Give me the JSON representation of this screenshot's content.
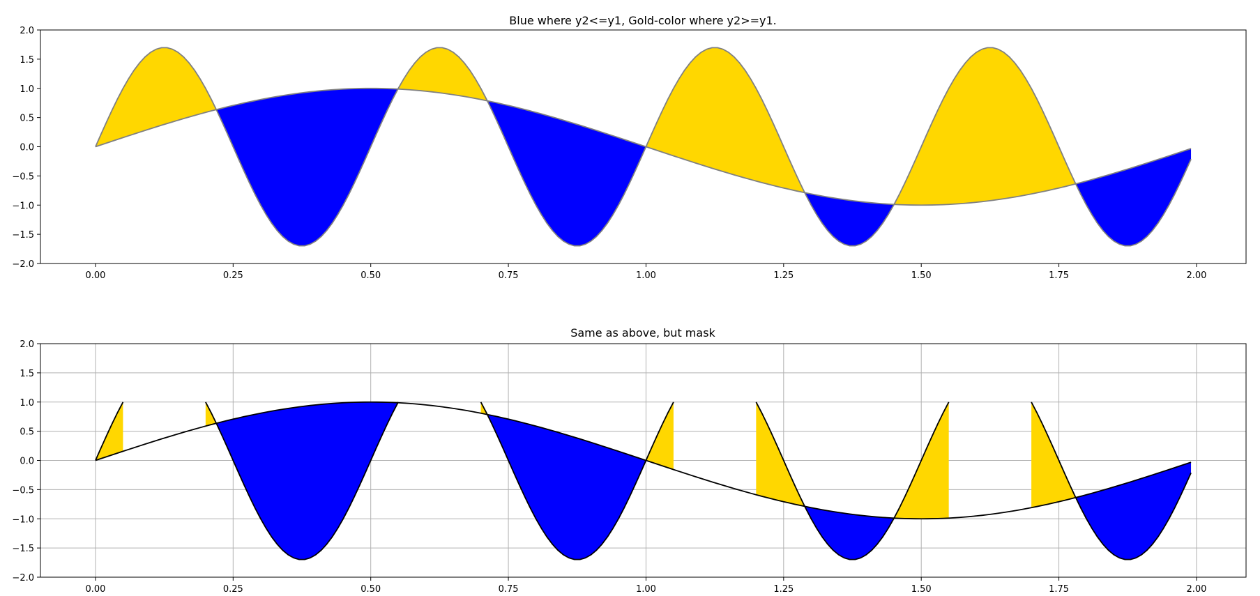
{
  "chart_data": [
    {
      "type": "area",
      "title": "Blue where y2<=y1, Gold-color where y2>=y1.",
      "xlabel": "",
      "ylabel": "",
      "xlim": [
        -0.1,
        2.09
      ],
      "ylim": [
        -2.0,
        2.0
      ],
      "xticks": [
        "0.00",
        "0.25",
        "0.50",
        "0.75",
        "1.00",
        "1.25",
        "1.50",
        "1.75",
        "2.00"
      ],
      "yticks": [
        "2.0",
        "1.5",
        "1.0",
        "0.5",
        "0.0",
        "−0.5",
        "−1.0",
        "−1.5",
        "−2.0"
      ],
      "grid": false,
      "x_range": [
        0.0,
        1.99
      ],
      "x_step": 0.01,
      "series": [
        {
          "function": "y1 = sin(pi * x)",
          "color": "#808080"
        },
        {
          "function": "y2 = 1.7 * sin(4 * pi * x)",
          "color": "#808080"
        }
      ],
      "fill": {
        "y2_ge_y1": "#FFD700",
        "y2_le_y1": "#0000FF"
      },
      "masked": false
    },
    {
      "type": "area",
      "title": "Same as above, but mask",
      "xlabel": "",
      "ylabel": "",
      "xlim": [
        -0.1,
        2.09
      ],
      "ylim": [
        -2.0,
        2.0
      ],
      "xticks": [
        "0.00",
        "0.25",
        "0.50",
        "0.75",
        "1.00",
        "1.25",
        "1.50",
        "1.75",
        "2.00"
      ],
      "yticks": [
        "2.0",
        "1.5",
        "1.0",
        "0.5",
        "0.0",
        "−0.5",
        "−1.0",
        "−1.5",
        "−2.0"
      ],
      "grid": true,
      "x_range": [
        0.0,
        1.99
      ],
      "x_step": 0.01,
      "series": [
        {
          "function": "y1 = sin(pi * x)",
          "color": "#000000"
        },
        {
          "function": "y2 = 1.7 * sin(4 * pi * x), masked where y2 > 1.0",
          "color": "#000000"
        }
      ],
      "mask_threshold": 1.0,
      "fill": {
        "y2_ge_y1": "#FFD700",
        "y2_le_y1": "#0000FF"
      },
      "masked": true
    }
  ]
}
